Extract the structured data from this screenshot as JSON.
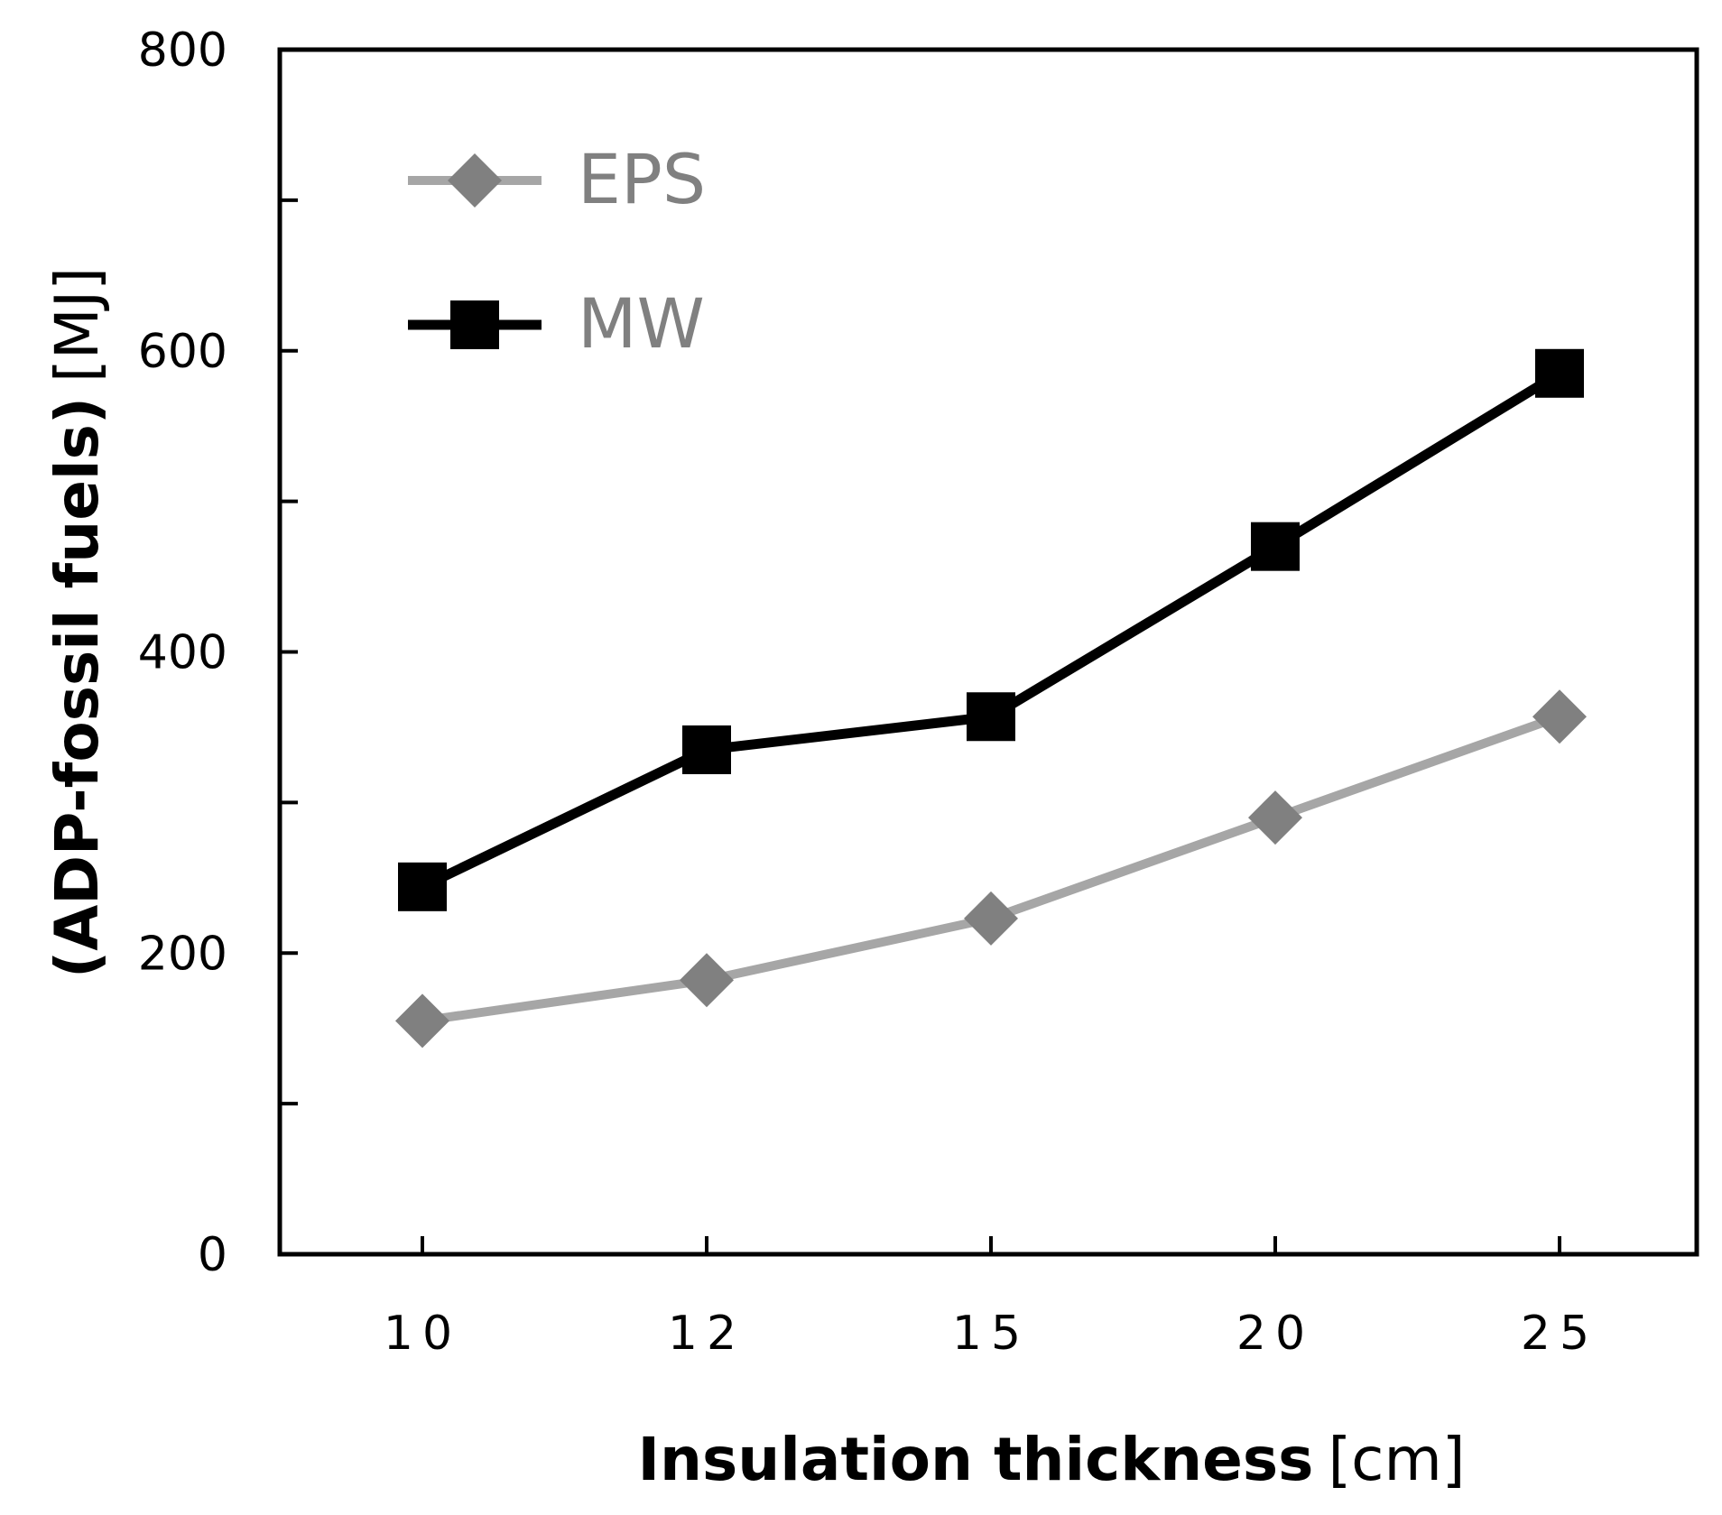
{
  "chart_data": {
    "type": "line",
    "title": "",
    "xlabel_bold": "Insulation thickness",
    "xlabel_unit": "[cm]",
    "ylabel_bold": "(ADP-fossil fuels)",
    "ylabel_unit": "[MJ]",
    "categories": [
      "10",
      "12",
      "15",
      "20",
      "25"
    ],
    "ylim": [
      0,
      800
    ],
    "yticks": [
      0,
      200,
      400,
      600,
      800
    ],
    "yticks_minor": [
      100,
      300,
      500,
      700
    ],
    "ytick_labels": [
      "0",
      "200",
      "400",
      "600",
      "800"
    ],
    "grid": false,
    "legend_position": "top-left",
    "series": [
      {
        "name": "EPS",
        "values": [
          155,
          182,
          223,
          290,
          357
        ],
        "line_color": "#a6a6a6",
        "marker": "diamond",
        "marker_color": "#808080",
        "label_color": "#808080"
      },
      {
        "name": "MW",
        "values": [
          244,
          335,
          357,
          470,
          585
        ],
        "line_color": "#000000",
        "marker": "square",
        "marker_color": "#000000",
        "label_color": "#808080"
      }
    ]
  }
}
